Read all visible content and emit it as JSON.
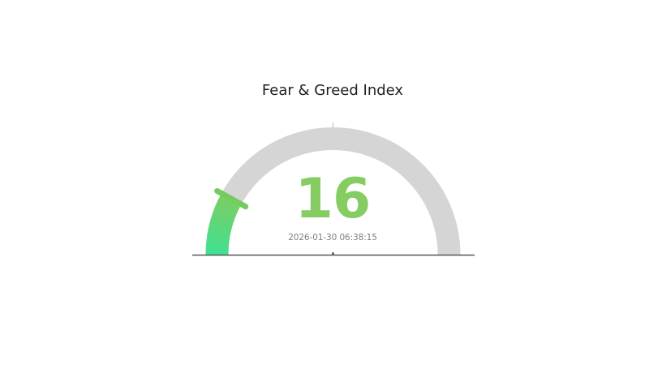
{
  "chart_data": {
    "type": "gauge",
    "title": "Fear & Greed Index",
    "value": 16,
    "min": 0,
    "max": 100,
    "timestamp": "2026-01-30 06:38:15",
    "layout": {
      "orientation": "semicircle-180-left-to-right",
      "legend": "none",
      "grid": false,
      "axis_line": true
    },
    "colors": {
      "track": "#d5d5d5",
      "fill_gradient_start": "#40e093",
      "fill_gradient_end": "#7bce63",
      "cap": "#74cc5e",
      "value_text": "#85cc62",
      "timestamp_text": "#7e7e7e",
      "title_text": "#1f1f1f",
      "baseline": "#56575b",
      "pivot_dot": "#4d4d4d",
      "top_tick": "#b4b4b4"
    }
  }
}
